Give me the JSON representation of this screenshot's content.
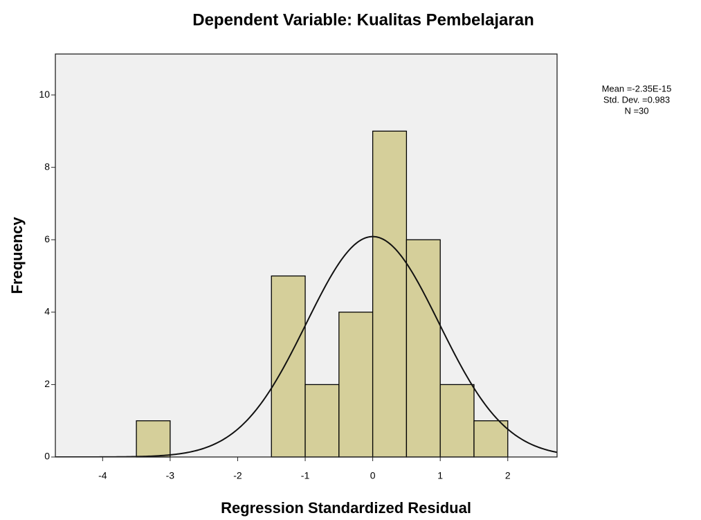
{
  "chart_data": {
    "type": "histogram",
    "title": "Dependent Variable: Kualitas Pembelajaran",
    "x_label": "Regression Standardized Residual",
    "y_label": "Frequency",
    "bins": [
      -3.5,
      -3,
      -2.5,
      -2,
      -1.5,
      -1,
      -0.5,
      0,
      0.5,
      1,
      1.5,
      2
    ],
    "values": [
      1,
      0,
      0,
      0,
      5,
      2,
      4,
      9,
      6,
      2,
      1
    ],
    "color": "#d5cf9a",
    "background": "#f0f0f0",
    "xlim": [
      -4.7,
      2.73
    ],
    "xticks": [
      -4,
      -3,
      -2,
      -1,
      0,
      1,
      2
    ],
    "ylim": [
      0,
      11.13
    ],
    "yticks": [
      0,
      2,
      4,
      6,
      8,
      10
    ],
    "normal_curve": true,
    "stats": [
      {
        "label": "Mean =-2.35E-15",
        "value": -2.35e-15
      },
      {
        "label": "Std. Dev. =0.983",
        "value": 0.983
      },
      {
        "label": "N =30",
        "value": 30
      }
    ]
  }
}
